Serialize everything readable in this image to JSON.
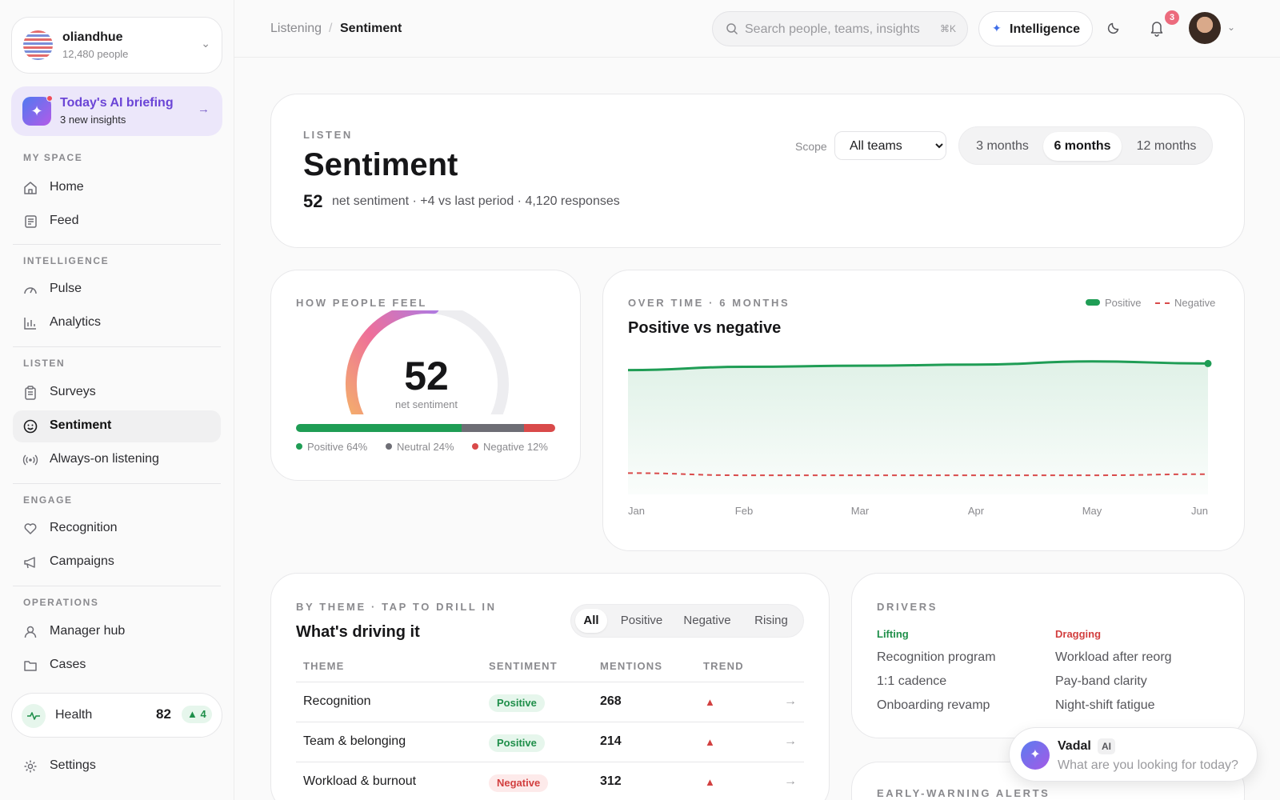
{
  "org": {
    "name": "oliandhue",
    "people": "12,480 people"
  },
  "briefing": {
    "title": "Today's AI briefing",
    "subtitle": "3 new insights"
  },
  "sidebar": {
    "sections": [
      {
        "label": "MY SPACE",
        "items": [
          {
            "label": "Home",
            "icon": "home-icon"
          },
          {
            "label": "Feed",
            "icon": "feed-icon"
          }
        ]
      },
      {
        "label": "INTELLIGENCE",
        "items": [
          {
            "label": "Pulse",
            "icon": "gauge-icon"
          },
          {
            "label": "Analytics",
            "icon": "bar-chart-icon"
          }
        ]
      },
      {
        "label": "LISTEN",
        "items": [
          {
            "label": "Surveys",
            "icon": "clipboard-icon"
          },
          {
            "label": "Sentiment",
            "icon": "smile-icon",
            "active": true
          },
          {
            "label": "Always-on listening",
            "icon": "broadcast-icon"
          }
        ]
      },
      {
        "label": "ENGAGE",
        "items": [
          {
            "label": "Recognition",
            "icon": "heart-hand-icon"
          },
          {
            "label": "Campaigns",
            "icon": "megaphone-icon"
          }
        ]
      },
      {
        "label": "OPERATIONS",
        "items": [
          {
            "label": "Manager hub",
            "icon": "person-icon"
          },
          {
            "label": "Cases",
            "icon": "folder-icon"
          }
        ]
      }
    ],
    "health": {
      "label": "Health",
      "value": "82",
      "delta": "▲ 4"
    },
    "settings": "Settings"
  },
  "topbar": {
    "breadcrumb": [
      "Listening",
      "Sentiment"
    ],
    "search_placeholder": "Search people, teams, insights",
    "search_shortcut": "⌘K",
    "intelligence_label": "Intelligence",
    "notification_count": "3"
  },
  "header": {
    "eyebrow": "LISTEN",
    "title": "Sentiment",
    "stat_value": "52",
    "stat_text": "net sentiment · +4 vs last period · 4,120 responses",
    "scope_label": "Scope",
    "scope_value": "All teams",
    "periods": [
      "3 months",
      "6 months",
      "12 months"
    ],
    "active_period": "6 months"
  },
  "feel": {
    "eyebrow": "HOW PEOPLE FEEL",
    "score": "52",
    "caption": "net sentiment",
    "distribution": [
      {
        "label": "Positive 64%",
        "percent": 64,
        "color": "#1f9d55"
      },
      {
        "label": "Neutral 24%",
        "percent": 24,
        "color": "#6e6e75"
      },
      {
        "label": "Negative 12%",
        "percent": 12,
        "color": "#d94a4a"
      }
    ]
  },
  "over_time": {
    "eyebrow": "OVER TIME · 6 MONTHS",
    "title": "Positive vs negative",
    "legend_positive": "Positive",
    "legend_negative": "Negative"
  },
  "chart_data": {
    "type": "area",
    "categories": [
      "Jan",
      "Feb",
      "Mar",
      "Apr",
      "May",
      "Jun"
    ],
    "series": [
      {
        "name": "Positive",
        "values": [
          56,
          57.5,
          58,
          58.5,
          60,
          59
        ],
        "color": "#1f9d55"
      },
      {
        "name": "Negative",
        "values": [
          9,
          8,
          8,
          8,
          8,
          8.5
        ],
        "color": "#d94a4a"
      }
    ],
    "ylim": [
      0,
      65
    ],
    "grid": false,
    "legend": "top-right"
  },
  "themes": {
    "eyebrow": "BY THEME · TAP TO DRILL IN",
    "title": "What's driving it",
    "filters": [
      "All",
      "Positive",
      "Negative",
      "Rising"
    ],
    "active_filter": "All",
    "columns": [
      "THEME",
      "SENTIMENT",
      "MENTIONS",
      "TREND"
    ],
    "rows": [
      {
        "theme": "Recognition",
        "sentiment": "Positive",
        "mentions": "268",
        "trend": "▲",
        "arrow": "→"
      },
      {
        "theme": "Team & belonging",
        "sentiment": "Positive",
        "mentions": "214",
        "trend": "▲",
        "arrow": "→"
      },
      {
        "theme": "Workload & burnout",
        "sentiment": "Negative",
        "mentions": "312",
        "trend": "▲",
        "arrow": "→"
      }
    ]
  },
  "drivers": {
    "eyebrow": "DRIVERS",
    "lifting_label": "Lifting",
    "dragging_label": "Dragging",
    "lifting": [
      "Recognition program",
      "1:1 cadence",
      "Onboarding revamp"
    ],
    "dragging": [
      "Workload after reorg",
      "Pay-band clarity",
      "Night-shift fatigue"
    ]
  },
  "alerts": {
    "eyebrow": "EARLY-WARNING ALERTS"
  },
  "assistant": {
    "name": "Vadal",
    "tag": "AI",
    "placeholder": "What are you looking for today?"
  }
}
